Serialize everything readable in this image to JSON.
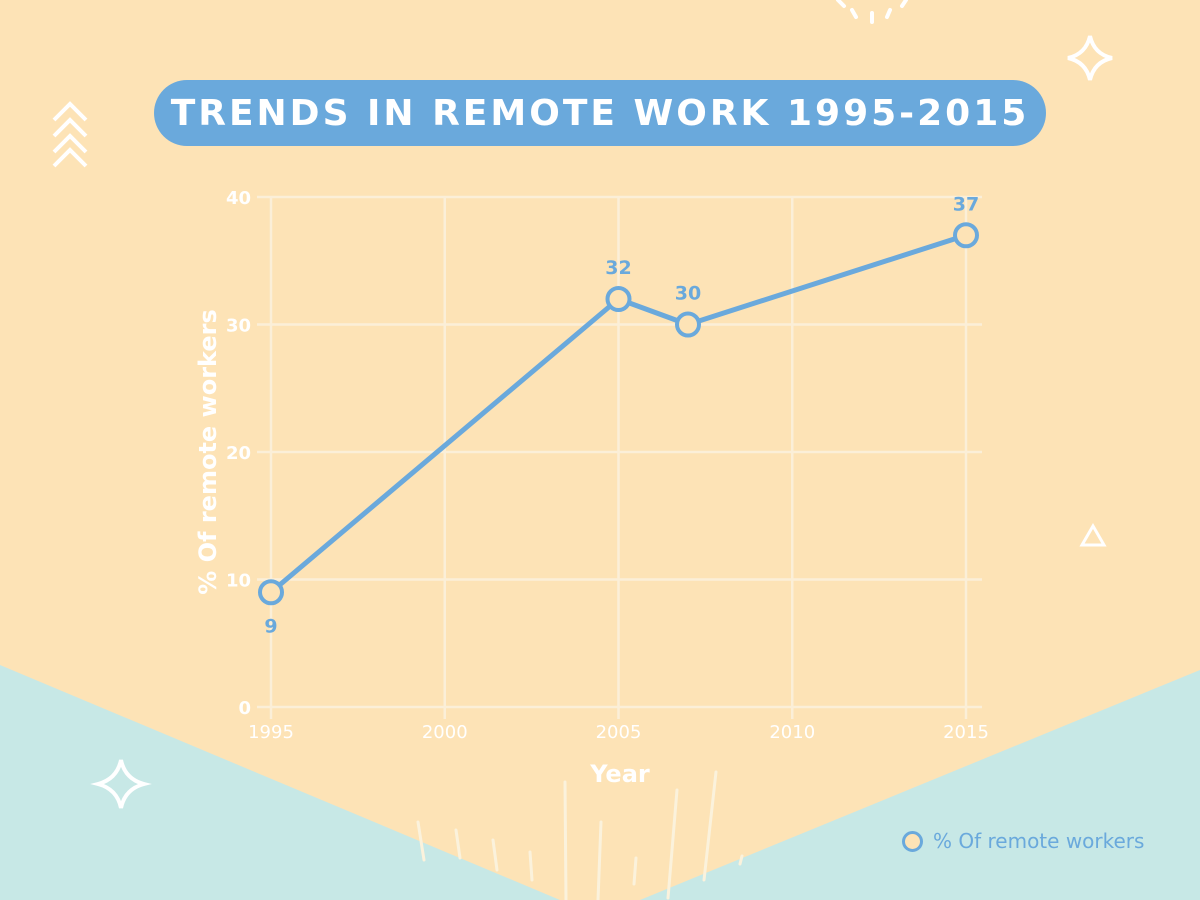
{
  "title": "TRENDS IN REMOTE WORK 1995-2015",
  "colors": {
    "background": "#fde3b6",
    "accent": "#6aa9dc",
    "mint": "#c7e8e6",
    "grid": "#fbefd8",
    "white": "#ffffff"
  },
  "chart_data": {
    "type": "line",
    "title": "TRENDS IN REMOTE WORK 1995-2015",
    "xlabel": "Year",
    "ylabel": "% Of remote workers",
    "xlim": [
      1995,
      2015
    ],
    "ylim": [
      0,
      40
    ],
    "x_ticks": [
      1995,
      2000,
      2005,
      2010,
      2015
    ],
    "y_ticks": [
      0,
      10,
      20,
      30,
      40
    ],
    "grid": true,
    "legend_position": "bottom-right",
    "series": [
      {
        "name": "% Of remote workers",
        "x": [
          1995,
          2005,
          2007,
          2015
        ],
        "y": [
          9,
          32,
          30,
          37
        ],
        "labels": [
          "9",
          "32",
          "30",
          "37"
        ]
      }
    ]
  },
  "legend": {
    "label": "% Of remote workers"
  },
  "decorations": [
    "chevrons-up-icon",
    "sparkle-icon",
    "triangle-outline-icon",
    "sunburst-icon"
  ]
}
